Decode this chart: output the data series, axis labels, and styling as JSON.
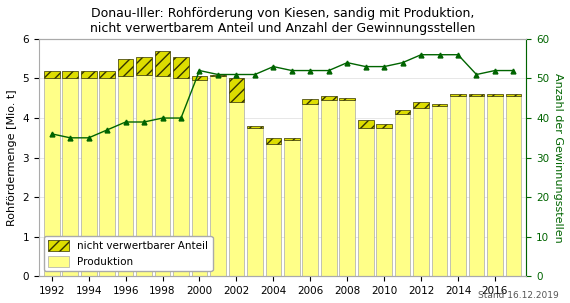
{
  "title": "Donau-Iller: Rohförderung von Kiesen, sandig mit Produktion,\nnicht verwertbarem Anteil und Anzahl der Gewinnungsstellen",
  "ylabel_left": "Rohfördermenge [Mio. t]",
  "ylabel_right": "Anzahl der Gewinnungsstellen",
  "footnote": "Stand 16.12.2019",
  "years_bar": [
    1992,
    1993,
    1994,
    1995,
    1996,
    1997,
    1998,
    1999,
    2000,
    2001,
    2002,
    2003,
    2004,
    2005,
    2006,
    2007,
    2008,
    2009,
    2010,
    2011,
    2012,
    2013,
    2014,
    2015,
    2016,
    2017
  ],
  "produktion": [
    5.0,
    5.0,
    5.0,
    5.0,
    5.05,
    5.1,
    5.05,
    5.0,
    4.95,
    5.05,
    4.4,
    3.75,
    3.35,
    3.45,
    4.35,
    4.45,
    4.45,
    3.75,
    3.75,
    4.1,
    4.25,
    4.3,
    4.55,
    4.55,
    4.55,
    4.55
  ],
  "nicht_verwertbar": [
    0.2,
    0.2,
    0.2,
    0.2,
    0.45,
    0.45,
    0.65,
    0.55,
    0.1,
    0.05,
    0.6,
    0.05,
    0.15,
    0.05,
    0.12,
    0.1,
    0.05,
    0.2,
    0.1,
    0.1,
    0.15,
    0.05,
    0.05,
    0.05,
    0.05,
    0.05
  ],
  "years_line": [
    1992,
    1993,
    1994,
    1995,
    1996,
    1997,
    1998,
    1999,
    2000,
    2001,
    2002,
    2003,
    2004,
    2005,
    2006,
    2007,
    2008,
    2009,
    2010,
    2011,
    2012,
    2013,
    2014,
    2015,
    2016,
    2017
  ],
  "gewinnungsstellen": [
    36,
    35,
    35,
    37,
    39,
    39,
    40,
    40,
    52,
    51,
    51,
    51,
    53,
    52,
    52,
    52,
    54,
    53,
    53,
    54,
    56,
    56,
    56,
    51,
    52,
    52
  ],
  "bar_color_produktion": "#ffff88",
  "hatch_facecolor": "#dddd00",
  "hatch_edgecolor": "#333300",
  "hatch_pattern": "///",
  "line_color": "#006400",
  "line_marker": "^",
  "background_color": "#ffffff",
  "plot_bg_color": "#ffffff",
  "ylim_left": [
    0,
    6
  ],
  "ylim_right": [
    0,
    60
  ],
  "yticks_left": [
    0,
    1,
    2,
    3,
    4,
    5,
    6
  ],
  "yticks_right": [
    0,
    10,
    20,
    30,
    40,
    50,
    60
  ],
  "title_fontsize": 9.0,
  "axis_fontsize": 8,
  "tick_fontsize": 7.5,
  "legend_fontsize": 7.5,
  "bar_width": 0.85,
  "grid_color": "#dddddd",
  "border_color": "#aaaaaa"
}
